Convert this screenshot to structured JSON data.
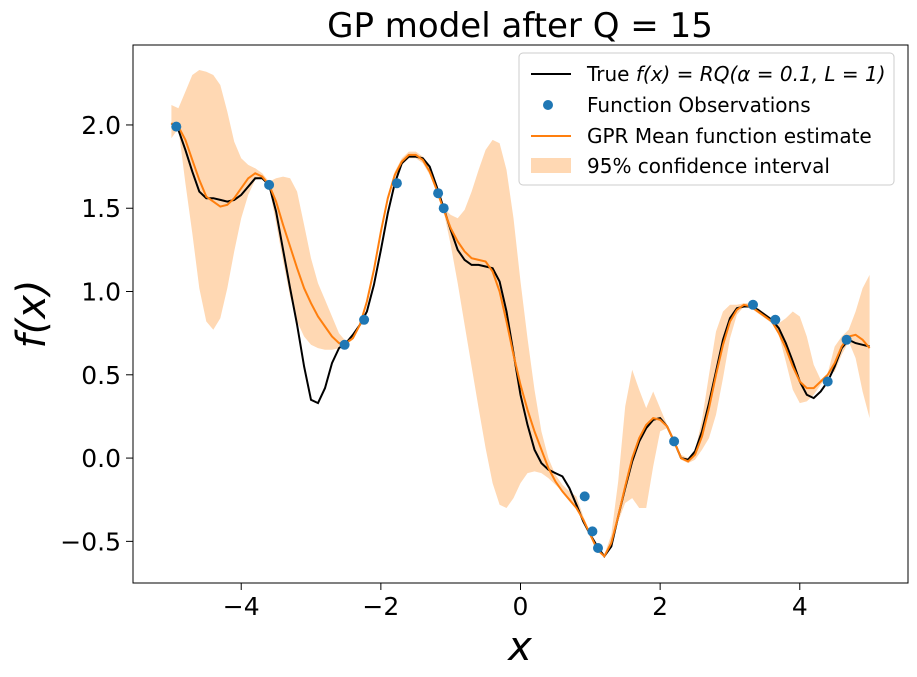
{
  "chart_data": {
    "type": "line",
    "title": "GP model after Q = 15",
    "xlabel": "x",
    "ylabel": "f(x)",
    "xlim": [
      -5.55,
      5.55
    ],
    "ylim": [
      -0.75,
      2.48
    ],
    "xticks": [
      -4,
      -2,
      0,
      2,
      4
    ],
    "xtick_labels": [
      "−4",
      "−2",
      "0",
      "2",
      "4"
    ],
    "yticks": [
      -0.5,
      0.0,
      0.5,
      1.0,
      1.5,
      2.0
    ],
    "ytick_labels": [
      "−0.5",
      "0.0",
      "0.5",
      "1.0",
      "1.5",
      "2.0"
    ],
    "grid": false,
    "legend_position": "top-right",
    "colors": {
      "true_function": "#000000",
      "observations": "#1f77b4",
      "mean": "#ff7f0e",
      "confidence": "#ffd8b3"
    },
    "series": [
      {
        "name": "True f(x) = RQ(α = 0.1, L = 1)",
        "kind": "line",
        "x": [
          -5.0,
          -4.9,
          -4.8,
          -4.7,
          -4.6,
          -4.5,
          -4.4,
          -4.3,
          -4.2,
          -4.1,
          -4.0,
          -3.9,
          -3.8,
          -3.7,
          -3.6,
          -3.5,
          -3.4,
          -3.3,
          -3.2,
          -3.1,
          -3.0,
          -2.9,
          -2.8,
          -2.7,
          -2.6,
          -2.5,
          -2.4,
          -2.3,
          -2.2,
          -2.1,
          -2.0,
          -1.9,
          -1.8,
          -1.7,
          -1.6,
          -1.5,
          -1.4,
          -1.3,
          -1.2,
          -1.1,
          -1.0,
          -0.9,
          -0.8,
          -0.7,
          -0.6,
          -0.5,
          -0.4,
          -0.3,
          -0.2,
          -0.1,
          0.0,
          0.1,
          0.2,
          0.3,
          0.4,
          0.5,
          0.6,
          0.7,
          0.8,
          0.9,
          1.0,
          1.1,
          1.2,
          1.3,
          1.4,
          1.5,
          1.6,
          1.7,
          1.8,
          1.9,
          2.0,
          2.1,
          2.2,
          2.3,
          2.4,
          2.5,
          2.6,
          2.7,
          2.8,
          2.9,
          3.0,
          3.1,
          3.2,
          3.3,
          3.4,
          3.5,
          3.6,
          3.7,
          3.8,
          3.9,
          4.0,
          4.1,
          4.2,
          4.3,
          4.4,
          4.5,
          4.6,
          4.7,
          4.8,
          4.9,
          5.0
        ],
        "y": [
          2.01,
          1.97,
          1.85,
          1.72,
          1.6,
          1.56,
          1.56,
          1.55,
          1.54,
          1.55,
          1.58,
          1.63,
          1.68,
          1.68,
          1.64,
          1.48,
          1.25,
          1.02,
          0.8,
          0.55,
          0.35,
          0.33,
          0.42,
          0.57,
          0.66,
          0.69,
          0.74,
          0.8,
          0.88,
          1.04,
          1.25,
          1.47,
          1.65,
          1.77,
          1.81,
          1.81,
          1.8,
          1.75,
          1.63,
          1.5,
          1.37,
          1.25,
          1.19,
          1.16,
          1.16,
          1.15,
          1.14,
          1.06,
          0.88,
          0.63,
          0.38,
          0.2,
          0.05,
          -0.03,
          -0.07,
          -0.09,
          -0.11,
          -0.18,
          -0.28,
          -0.38,
          -0.46,
          -0.53,
          -0.59,
          -0.53,
          -0.35,
          -0.18,
          -0.02,
          0.1,
          0.18,
          0.23,
          0.24,
          0.19,
          0.1,
          0.0,
          -0.01,
          0.04,
          0.16,
          0.33,
          0.52,
          0.71,
          0.84,
          0.9,
          0.91,
          0.91,
          0.89,
          0.86,
          0.83,
          0.78,
          0.69,
          0.58,
          0.46,
          0.38,
          0.36,
          0.4,
          0.46,
          0.55,
          0.66,
          0.71,
          0.69,
          0.68,
          0.67
        ]
      },
      {
        "name": "Function Observations",
        "kind": "scatter",
        "x": [
          -4.93,
          -3.6,
          -2.52,
          -2.24,
          -1.77,
          -1.18,
          -1.1,
          0.92,
          1.03,
          1.11,
          2.2,
          3.33,
          3.65,
          4.4,
          4.67
        ],
        "y": [
          1.99,
          1.64,
          0.68,
          0.83,
          1.65,
          1.59,
          1.5,
          -0.23,
          -0.44,
          -0.54,
          0.1,
          0.92,
          0.83,
          0.46,
          0.71
        ]
      },
      {
        "name": "GPR Mean function estimate",
        "kind": "line",
        "x": [
          -5.0,
          -4.9,
          -4.8,
          -4.7,
          -4.6,
          -4.5,
          -4.4,
          -4.3,
          -4.2,
          -4.1,
          -4.0,
          -3.9,
          -3.8,
          -3.7,
          -3.6,
          -3.5,
          -3.4,
          -3.3,
          -3.2,
          -3.1,
          -3.0,
          -2.9,
          -2.8,
          -2.7,
          -2.6,
          -2.5,
          -2.4,
          -2.3,
          -2.2,
          -2.1,
          -2.0,
          -1.9,
          -1.8,
          -1.7,
          -1.6,
          -1.5,
          -1.4,
          -1.3,
          -1.2,
          -1.1,
          -1.0,
          -0.9,
          -0.8,
          -0.7,
          -0.6,
          -0.5,
          -0.4,
          -0.3,
          -0.2,
          -0.1,
          0.0,
          0.1,
          0.2,
          0.3,
          0.4,
          0.5,
          0.6,
          0.7,
          0.8,
          0.9,
          1.0,
          1.1,
          1.2,
          1.3,
          1.4,
          1.5,
          1.6,
          1.7,
          1.8,
          1.9,
          2.0,
          2.1,
          2.2,
          2.3,
          2.4,
          2.5,
          2.6,
          2.7,
          2.8,
          2.9,
          3.0,
          3.1,
          3.2,
          3.3,
          3.4,
          3.5,
          3.6,
          3.7,
          3.8,
          3.9,
          4.0,
          4.1,
          4.2,
          4.3,
          4.4,
          4.5,
          4.6,
          4.7,
          4.8,
          4.9,
          5.0
        ],
        "y": [
          2.01,
          1.99,
          1.91,
          1.79,
          1.67,
          1.57,
          1.54,
          1.51,
          1.52,
          1.56,
          1.62,
          1.68,
          1.71,
          1.69,
          1.64,
          1.54,
          1.4,
          1.27,
          1.14,
          1.02,
          0.93,
          0.85,
          0.79,
          0.73,
          0.69,
          0.69,
          0.72,
          0.8,
          0.94,
          1.13,
          1.36,
          1.56,
          1.7,
          1.78,
          1.82,
          1.82,
          1.79,
          1.72,
          1.61,
          1.49,
          1.38,
          1.3,
          1.24,
          1.2,
          1.19,
          1.18,
          1.12,
          1.0,
          0.82,
          0.62,
          0.44,
          0.29,
          0.16,
          0.05,
          -0.06,
          -0.14,
          -0.2,
          -0.25,
          -0.3,
          -0.37,
          -0.46,
          -0.55,
          -0.59,
          -0.51,
          -0.35,
          -0.17,
          0.0,
          0.12,
          0.2,
          0.24,
          0.23,
          0.19,
          0.1,
          0.0,
          -0.02,
          0.02,
          0.13,
          0.3,
          0.5,
          0.68,
          0.82,
          0.89,
          0.92,
          0.91,
          0.88,
          0.85,
          0.82,
          0.75,
          0.66,
          0.55,
          0.46,
          0.42,
          0.42,
          0.46,
          0.5,
          0.57,
          0.67,
          0.73,
          0.74,
          0.71,
          0.66
        ]
      },
      {
        "name": "95% confidence interval",
        "kind": "band",
        "x": [
          -5.0,
          -4.9,
          -4.8,
          -4.7,
          -4.6,
          -4.5,
          -4.4,
          -4.3,
          -4.2,
          -4.1,
          -4.0,
          -3.9,
          -3.8,
          -3.7,
          -3.6,
          -3.5,
          -3.4,
          -3.3,
          -3.2,
          -3.1,
          -3.0,
          -2.9,
          -2.8,
          -2.7,
          -2.6,
          -2.5,
          -2.4,
          -2.3,
          -2.2,
          -2.1,
          -2.0,
          -1.9,
          -1.8,
          -1.7,
          -1.6,
          -1.5,
          -1.4,
          -1.3,
          -1.2,
          -1.1,
          -1.0,
          -0.9,
          -0.8,
          -0.7,
          -0.6,
          -0.5,
          -0.4,
          -0.3,
          -0.2,
          -0.1,
          0.0,
          0.1,
          0.2,
          0.3,
          0.4,
          0.5,
          0.6,
          0.7,
          0.8,
          0.9,
          1.0,
          1.1,
          1.2,
          1.3,
          1.4,
          1.5,
          1.6,
          1.7,
          1.8,
          1.9,
          2.0,
          2.1,
          2.2,
          2.3,
          2.4,
          2.5,
          2.6,
          2.7,
          2.8,
          2.9,
          3.0,
          3.1,
          3.2,
          3.3,
          3.4,
          3.5,
          3.6,
          3.7,
          3.8,
          3.9,
          4.0,
          4.1,
          4.2,
          4.3,
          4.4,
          4.5,
          4.6,
          4.7,
          4.8,
          4.9,
          5.0
        ],
        "lower": [
          1.92,
          1.98,
          1.65,
          1.35,
          1.02,
          0.82,
          0.77,
          0.84,
          1.02,
          1.24,
          1.44,
          1.58,
          1.67,
          1.68,
          1.63,
          1.41,
          1.18,
          0.97,
          0.82,
          0.73,
          0.68,
          0.66,
          0.65,
          0.65,
          0.66,
          0.68,
          0.71,
          0.79,
          0.93,
          1.12,
          1.34,
          1.54,
          1.68,
          1.76,
          1.8,
          1.8,
          1.77,
          1.7,
          1.6,
          1.48,
          1.28,
          1.05,
          0.8,
          0.55,
          0.3,
          0.06,
          -0.15,
          -0.28,
          -0.3,
          -0.24,
          -0.15,
          -0.09,
          -0.08,
          -0.09,
          -0.12,
          -0.16,
          -0.2,
          -0.25,
          -0.3,
          -0.37,
          -0.46,
          -0.55,
          -0.59,
          -0.52,
          -0.38,
          -0.27,
          -0.24,
          -0.3,
          -0.3,
          -0.05,
          0.16,
          0.18,
          0.09,
          -0.01,
          -0.03,
          -0.01,
          0.05,
          0.12,
          0.26,
          0.48,
          0.72,
          0.86,
          0.91,
          0.9,
          0.87,
          0.84,
          0.81,
          0.74,
          0.58,
          0.41,
          0.33,
          0.34,
          0.38,
          0.44,
          0.49,
          0.52,
          0.62,
          0.7,
          0.6,
          0.4,
          0.24
        ],
        "upper": [
          2.12,
          2.1,
          2.2,
          2.3,
          2.33,
          2.32,
          2.3,
          2.24,
          2.08,
          1.9,
          1.8,
          1.76,
          1.74,
          1.71,
          1.66,
          1.68,
          1.69,
          1.68,
          1.6,
          1.4,
          1.2,
          1.05,
          0.95,
          0.85,
          0.75,
          0.7,
          0.73,
          0.81,
          0.95,
          1.14,
          1.38,
          1.58,
          1.72,
          1.8,
          1.84,
          1.84,
          1.81,
          1.74,
          1.62,
          1.5,
          1.46,
          1.44,
          1.49,
          1.6,
          1.73,
          1.85,
          1.91,
          1.89,
          1.73,
          1.44,
          1.06,
          0.72,
          0.41,
          0.16,
          -0.0,
          -0.1,
          -0.16,
          -0.2,
          -0.23,
          -0.35,
          -0.45,
          -0.54,
          -0.58,
          -0.46,
          -0.14,
          0.31,
          0.53,
          0.41,
          0.3,
          0.4,
          0.3,
          0.2,
          0.11,
          0.02,
          0.0,
          0.04,
          0.23,
          0.5,
          0.76,
          0.88,
          0.92,
          0.92,
          0.93,
          0.93,
          0.9,
          0.87,
          0.84,
          0.81,
          0.84,
          0.88,
          0.85,
          0.73,
          0.56,
          0.47,
          0.51,
          0.67,
          0.73,
          0.77,
          0.88,
          1.02,
          1.1
        ]
      }
    ],
    "legend": [
      {
        "label": " True ",
        "math": "f(x) = RQ(α = 0.1, L = 1)",
        "kind": "line",
        "color": "#000000"
      },
      {
        "label": "Function Observations",
        "kind": "marker",
        "color": "#1f77b4"
      },
      {
        "label": "GPR Mean function estimate",
        "kind": "line",
        "color": "#ff7f0e"
      },
      {
        "label": "95% confidence interval",
        "kind": "patch",
        "color": "#ffd8b3"
      }
    ]
  }
}
